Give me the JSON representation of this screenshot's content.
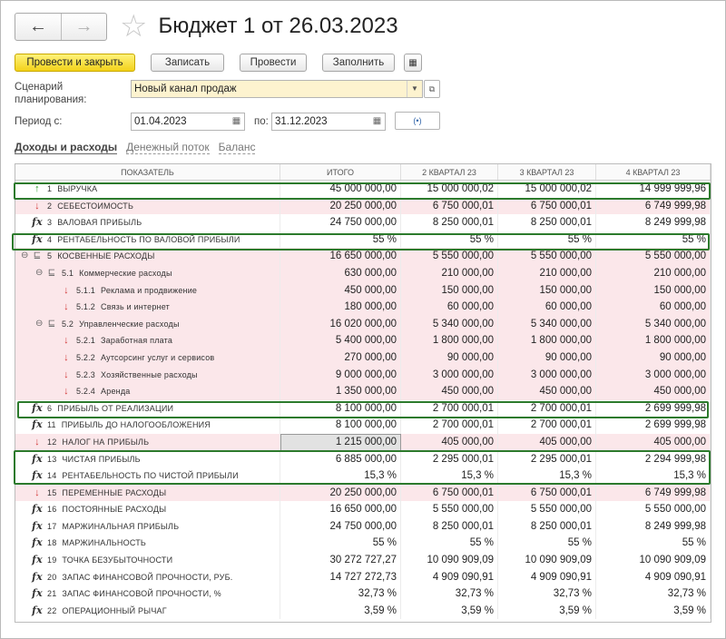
{
  "header": {
    "back": "←",
    "forward": "→",
    "favorite": "☆",
    "title": "Бюджет 1 от 26.03.2023"
  },
  "toolbar": {
    "post_close": "Провести и закрыть",
    "save": "Записать",
    "post": "Провести",
    "fill": "Заполнить",
    "extra_icon": "▦"
  },
  "form": {
    "scenario_label": "Сценарий планирования:",
    "scenario_value": "Новый канал продаж",
    "period_label": "Период с:",
    "date_from": "01.04.2023",
    "to_label": "по:",
    "date_to": "31.12.2023",
    "period_btn": "(•)"
  },
  "tabs": [
    "Доходы и расходы",
    "Денежный поток",
    "Баланс"
  ],
  "table": {
    "columns": [
      "ПОКАЗАТЕЛЬ",
      "ИТОГО",
      "2 КВАРТАЛ 23",
      "3 КВАРТАЛ 23",
      "4 КВАРТАЛ 23"
    ],
    "rows": [
      {
        "icon": "up",
        "code": "1",
        "name": "ВЫРУЧКА",
        "total": "45 000 000,00",
        "q2": "15 000 000,02",
        "q3": "15 000 000,02",
        "q4": "14 999 999,96",
        "pink": false,
        "indent": 0
      },
      {
        "icon": "down",
        "code": "2",
        "name": "СЕБЕСТОИМОСТЬ",
        "total": "20 250 000,00",
        "q2": "6 750 000,01",
        "q3": "6 750 000,01",
        "q4": "6 749 999,98",
        "pink": true,
        "indent": 0
      },
      {
        "icon": "fx",
        "code": "3",
        "name": "ВАЛОВАЯ ПРИБЫЛЬ",
        "total": "24 750 000,00",
        "q2": "8 250 000,01",
        "q3": "8 250 000,01",
        "q4": "8 249 999,98",
        "pink": false,
        "indent": 0
      },
      {
        "icon": "fx",
        "code": "4",
        "name": "РЕНТАБЕЛЬНОСТЬ ПО ВАЛОВОЙ ПРИБЫЛИ",
        "total": "55 %",
        "q2": "55 %",
        "q3": "55 %",
        "q4": "55 %",
        "pink": false,
        "indent": 0
      },
      {
        "icon": "grp",
        "toggle": "⊖",
        "code": "5",
        "name": "КОСВЕННЫЕ РАСХОДЫ",
        "total": "16 650 000,00",
        "q2": "5 550 000,00",
        "q3": "5 550 000,00",
        "q4": "5 550 000,00",
        "pink": true,
        "indent": 0
      },
      {
        "icon": "grp",
        "toggle": "⊖",
        "code": "5.1",
        "name": "Коммерческие расходы",
        "total": "630 000,00",
        "q2": "210 000,00",
        "q3": "210 000,00",
        "q4": "210 000,00",
        "pink": true,
        "indent": 1
      },
      {
        "icon": "down",
        "code": "5.1.1",
        "name": "Реклама и продвижение",
        "total": "450 000,00",
        "q2": "150 000,00",
        "q3": "150 000,00",
        "q4": "150 000,00",
        "pink": true,
        "indent": 2
      },
      {
        "icon": "down",
        "code": "5.1.2",
        "name": "Связь и интернет",
        "total": "180 000,00",
        "q2": "60 000,00",
        "q3": "60 000,00",
        "q4": "60 000,00",
        "pink": true,
        "indent": 2
      },
      {
        "icon": "grp",
        "toggle": "⊖",
        "code": "5.2",
        "name": "Управленческие расходы",
        "total": "16 020 000,00",
        "q2": "5 340 000,00",
        "q3": "5 340 000,00",
        "q4": "5 340 000,00",
        "pink": true,
        "indent": 1
      },
      {
        "icon": "down",
        "code": "5.2.1",
        "name": "Заработная плата",
        "total": "5 400 000,00",
        "q2": "1 800 000,00",
        "q3": "1 800 000,00",
        "q4": "1 800 000,00",
        "pink": true,
        "indent": 2
      },
      {
        "icon": "down",
        "code": "5.2.2",
        "name": "Аутсорсинг услуг и сервисов",
        "total": "270 000,00",
        "q2": "90 000,00",
        "q3": "90 000,00",
        "q4": "90 000,00",
        "pink": true,
        "indent": 2
      },
      {
        "icon": "down",
        "code": "5.2.3",
        "name": "Хозяйственные расходы",
        "total": "9 000 000,00",
        "q2": "3 000 000,00",
        "q3": "3 000 000,00",
        "q4": "3 000 000,00",
        "pink": true,
        "indent": 2
      },
      {
        "icon": "down",
        "code": "5.2.4",
        "name": "Аренда",
        "total": "1 350 000,00",
        "q2": "450 000,00",
        "q3": "450 000,00",
        "q4": "450 000,00",
        "pink": true,
        "indent": 2
      },
      {
        "icon": "fx",
        "code": "6",
        "name": "ПРИБЫЛЬ ОТ РЕАЛИЗАЦИИ",
        "total": "8 100 000,00",
        "q2": "2 700 000,01",
        "q3": "2 700 000,01",
        "q4": "2 699 999,98",
        "pink": false,
        "indent": 0
      },
      {
        "icon": "fx",
        "code": "11",
        "name": "ПРИБЫЛЬ ДО НАЛОГООБЛОЖЕНИЯ",
        "total": "8 100 000,00",
        "q2": "2 700 000,01",
        "q3": "2 700 000,01",
        "q4": "2 699 999,98",
        "pink": false,
        "indent": 0
      },
      {
        "icon": "down",
        "code": "12",
        "name": "НАЛОГ НА ПРИБЫЛЬ",
        "total": "1 215 000,00",
        "q2": "405 000,00",
        "q3": "405 000,00",
        "q4": "405 000,00",
        "pink": true,
        "indent": 0,
        "grey": true
      },
      {
        "icon": "fx",
        "code": "13",
        "name": "ЧИСТАЯ ПРИБЫЛЬ",
        "total": "6 885 000,00",
        "q2": "2 295 000,01",
        "q3": "2 295 000,01",
        "q4": "2 294 999,98",
        "pink": false,
        "indent": 0
      },
      {
        "icon": "fx",
        "code": "14",
        "name": "РЕНТАБЕЛЬНОСТЬ ПО ЧИСТОЙ ПРИБЫЛИ",
        "total": "15,3 %",
        "q2": "15,3 %",
        "q3": "15,3 %",
        "q4": "15,3 %",
        "pink": false,
        "indent": 0
      },
      {
        "icon": "down",
        "code": "15",
        "name": "ПЕРЕМЕННЫЕ РАСХОДЫ",
        "total": "20 250 000,00",
        "q2": "6 750 000,01",
        "q3": "6 750 000,01",
        "q4": "6 749 999,98",
        "pink": true,
        "indent": 0
      },
      {
        "icon": "fx",
        "code": "16",
        "name": "ПОСТОЯННЫЕ РАСХОДЫ",
        "total": "16 650 000,00",
        "q2": "5 550 000,00",
        "q3": "5 550 000,00",
        "q4": "5 550 000,00",
        "pink": false,
        "indent": 0
      },
      {
        "icon": "fx",
        "code": "17",
        "name": "МАРЖИНАЛЬНАЯ ПРИБЫЛЬ",
        "total": "24 750 000,00",
        "q2": "8 250 000,01",
        "q3": "8 250 000,01",
        "q4": "8 249 999,98",
        "pink": false,
        "indent": 0
      },
      {
        "icon": "fx",
        "code": "18",
        "name": "МАРЖИНАЛЬНОСТЬ",
        "total": "55 %",
        "q2": "55 %",
        "q3": "55 %",
        "q4": "55 %",
        "pink": false,
        "indent": 0
      },
      {
        "icon": "fx",
        "code": "19",
        "name": "ТОЧКА БЕЗУБЫТОЧНОСТИ",
        "total": "30 272 727,27",
        "q2": "10 090 909,09",
        "q3": "10 090 909,09",
        "q4": "10 090 909,09",
        "pink": false,
        "indent": 0
      },
      {
        "icon": "fx",
        "code": "20",
        "name": "ЗАПАС ФИНАНСОВОЙ ПРОЧНОСТИ, РУБ.",
        "total": "14 727 272,73",
        "q2": "4 909 090,91",
        "q3": "4 909 090,91",
        "q4": "4 909 090,91",
        "pink": false,
        "indent": 0
      },
      {
        "icon": "fx",
        "code": "21",
        "name": "ЗАПАС ФИНАНСОВОЙ ПРОЧНОСТИ, %",
        "total": "32,73 %",
        "q2": "32,73 %",
        "q3": "32,73 %",
        "q4": "32,73 %",
        "pink": false,
        "indent": 0
      },
      {
        "icon": "fx",
        "code": "22",
        "name": "ОПЕРАЦИОННЫЙ РЫЧАГ",
        "total": "3,59 %",
        "q2": "3,59 %",
        "q3": "3,59 %",
        "q4": "3,59 %",
        "pink": false,
        "indent": 0
      }
    ]
  }
}
